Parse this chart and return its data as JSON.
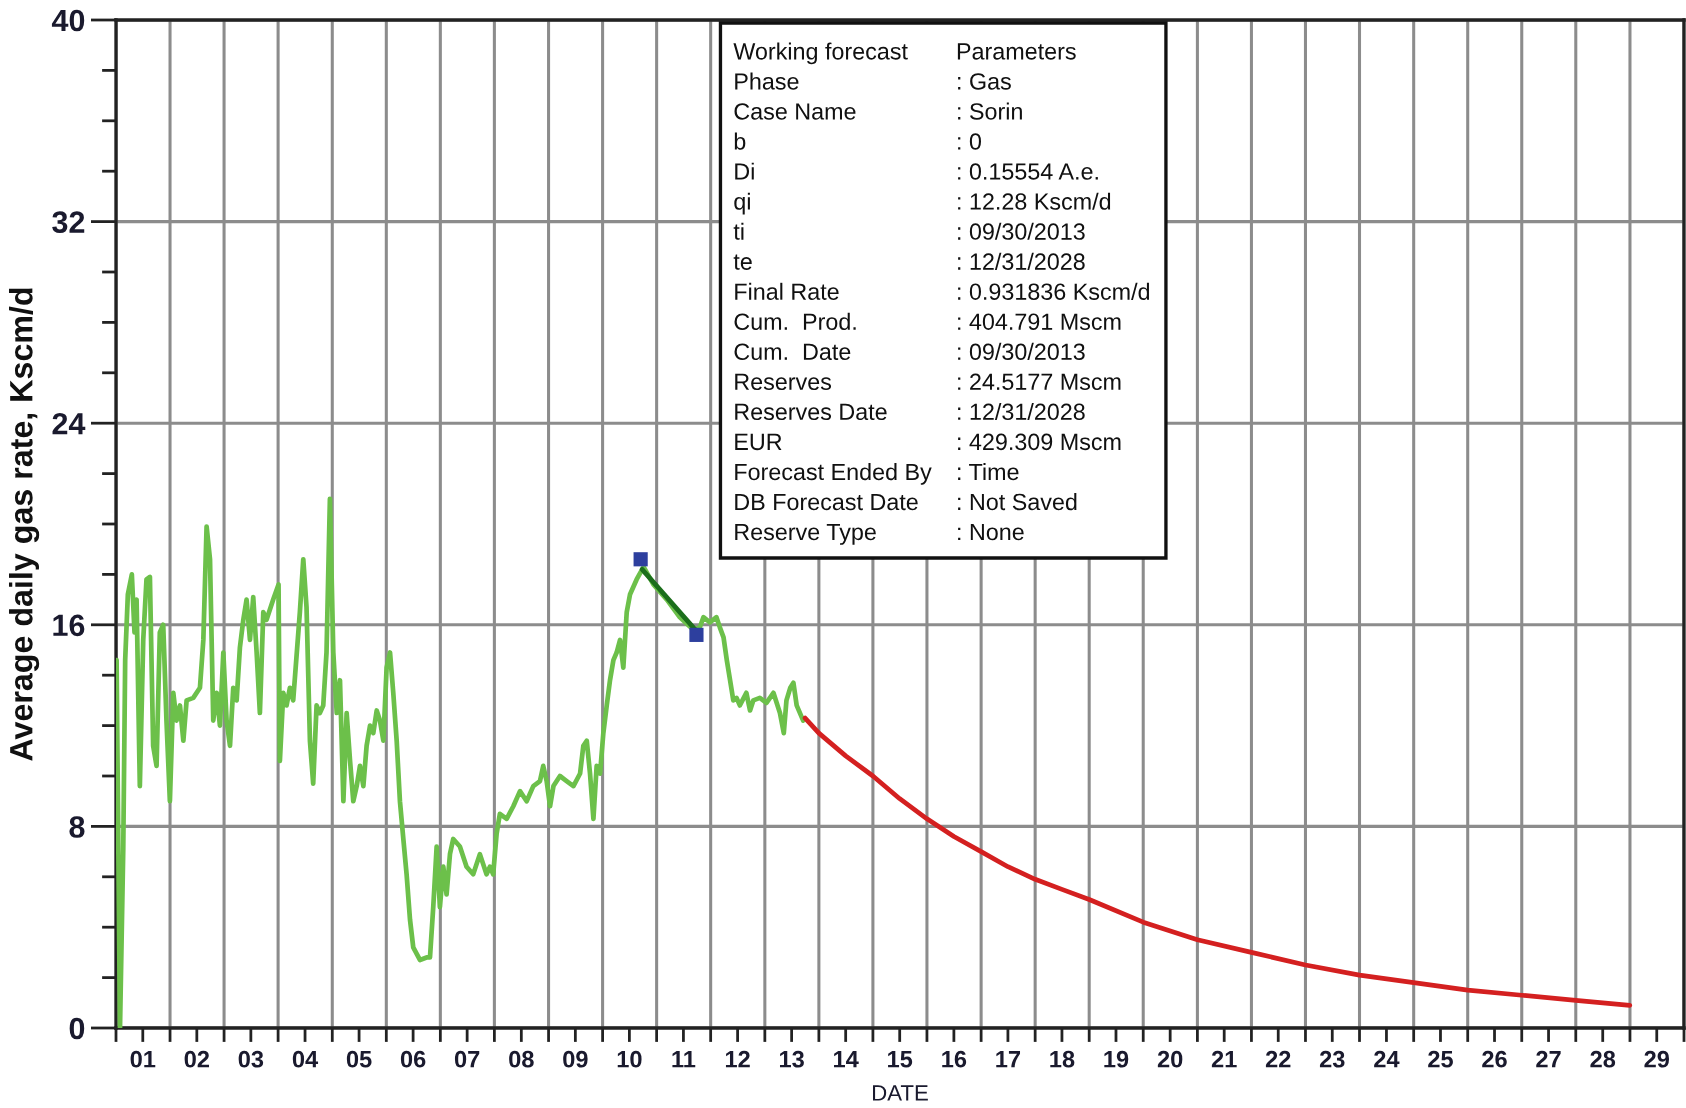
{
  "chart_data": {
    "type": "line",
    "xlabel": "DATE",
    "ylabel": "Average daily gas rate, Kscm/d",
    "annotations": [
      "Working forecast",
      "Parameters",
      "Phase",
      ": Gas",
      "Case Name",
      ": Sorin",
      "b",
      ": 0",
      "Di",
      ": 0.15554 A.e.",
      "qi",
      ": 12.28 Kscm/d",
      "ti",
      ": 09/30/2013",
      "te",
      ": 12/31/2028",
      "Final Rate",
      ": 0.931836 Kscm/d",
      "Cum.  Prod.",
      ": 404.791 Mscm",
      "Cum.  Date",
      ": 09/30/2013",
      "Reserves",
      ": 24.5177 Mscm",
      "Reserves Date",
      ": 12/31/2028",
      "EUR",
      ": 429.309 Mscm",
      "Forecast Ended By",
      ": Time",
      "DB Forecast Date",
      ": Not Saved",
      "Reserve Type",
      ": None"
    ],
    "xlim": [
      "2001-01-01",
      "2030-01-01"
    ],
    "xticks": [
      {
        "value": "2001-01-01",
        "label": null
      },
      {
        "value": "2001-07-01",
        "label": "01"
      },
      {
        "value": "2002-01-01",
        "label": null
      },
      {
        "value": "2002-07-01",
        "label": "02"
      },
      {
        "value": "2003-01-01",
        "label": null
      },
      {
        "value": "2003-07-01",
        "label": "03"
      },
      {
        "value": "2004-01-01",
        "label": null
      },
      {
        "value": "2004-07-01",
        "label": "04"
      },
      {
        "value": "2005-01-01",
        "label": null
      },
      {
        "value": "2005-07-01",
        "label": "05"
      },
      {
        "value": "2006-01-01",
        "label": null
      },
      {
        "value": "2006-07-01",
        "label": "06"
      },
      {
        "value": "2007-01-01",
        "label": null
      },
      {
        "value": "2007-07-01",
        "label": "07"
      },
      {
        "value": "2008-01-01",
        "label": null
      },
      {
        "value": "2008-07-01",
        "label": "08"
      },
      {
        "value": "2009-01-01",
        "label": null
      },
      {
        "value": "2009-07-01",
        "label": "09"
      },
      {
        "value": "2010-01-01",
        "label": null
      },
      {
        "value": "2010-07-01",
        "label": "10"
      },
      {
        "value": "2011-01-01",
        "label": null
      },
      {
        "value": "2011-07-01",
        "label": "11"
      },
      {
        "value": "2012-01-01",
        "label": null
      },
      {
        "value": "2012-07-01",
        "label": "12"
      },
      {
        "value": "2013-01-01",
        "label": null
      },
      {
        "value": "2013-07-01",
        "label": "13"
      },
      {
        "value": "2014-01-01",
        "label": null
      },
      {
        "value": "2014-07-01",
        "label": "14"
      },
      {
        "value": "2015-01-01",
        "label": null
      },
      {
        "value": "2015-07-01",
        "label": "15"
      },
      {
        "value": "2016-01-01",
        "label": null
      },
      {
        "value": "2016-07-01",
        "label": "16"
      },
      {
        "value": "2017-01-01",
        "label": null
      },
      {
        "value": "2017-07-01",
        "label": "17"
      },
      {
        "value": "2018-01-01",
        "label": null
      },
      {
        "value": "2018-07-01",
        "label": "18"
      },
      {
        "value": "2019-01-01",
        "label": null
      },
      {
        "value": "2019-07-01",
        "label": "19"
      },
      {
        "value": "2020-01-01",
        "label": null
      },
      {
        "value": "2020-07-01",
        "label": "20"
      },
      {
        "value": "2021-01-01",
        "label": null
      },
      {
        "value": "2021-07-01",
        "label": "21"
      },
      {
        "value": "2022-01-01",
        "label": null
      },
      {
        "value": "2022-07-01",
        "label": "22"
      },
      {
        "value": "2023-01-01",
        "label": null
      },
      {
        "value": "2023-07-01",
        "label": "23"
      },
      {
        "value": "2024-01-01",
        "label": null
      },
      {
        "value": "2024-07-01",
        "label": "24"
      },
      {
        "value": "2025-01-01",
        "label": null
      },
      {
        "value": "2025-07-01",
        "label": "25"
      },
      {
        "value": "2026-01-01",
        "label": null
      },
      {
        "value": "2026-07-01",
        "label": "26"
      },
      {
        "value": "2027-01-01",
        "label": null
      },
      {
        "value": "2027-07-01",
        "label": "27"
      },
      {
        "value": "2028-01-01",
        "label": null
      },
      {
        "value": "2028-07-01",
        "label": "28"
      },
      {
        "value": "2029-01-01",
        "label": null
      },
      {
        "value": "2029-07-01",
        "label": "29"
      },
      {
        "value": "2030-01-01",
        "label": null
      }
    ],
    "ylim": [
      0,
      40
    ],
    "yticks": [
      0,
      {
        "value": 2,
        "label": null
      },
      {
        "value": 4,
        "label": null
      },
      {
        "value": 6,
        "label": null
      },
      8,
      {
        "value": 10,
        "label": null
      },
      {
        "value": 12,
        "label": null
      },
      {
        "value": 14,
        "label": null
      },
      16,
      {
        "value": 18,
        "label": null
      },
      {
        "value": 20,
        "label": null
      },
      {
        "value": 22,
        "label": null
      },
      24,
      {
        "value": 26,
        "label": null
      },
      {
        "value": 28,
        "label": null
      },
      {
        "value": 30,
        "label": null
      },
      32,
      {
        "value": 34,
        "label": null
      },
      {
        "value": 36,
        "label": null
      },
      {
        "value": 38,
        "label": null
      },
      40
    ],
    "grid": true,
    "series": [
      {
        "type": "line",
        "color": "#6cc04a",
        "x": [
          "2001-01-05",
          "2001-01-28",
          "2001-02-19",
          "2001-03-04",
          "2001-03-22",
          "2001-04-18",
          "2001-05-06",
          "2001-05-20",
          "2001-06-11",
          "2001-07-04",
          "2001-07-26",
          "2001-08-18",
          "2001-09-09",
          "2001-10-02",
          "2001-10-24",
          "2001-11-16",
          "2001-12-08",
          "2001-12-31",
          "2002-01-23",
          "2002-02-14",
          "2002-03-09",
          "2002-04-01",
          "2002-04-23",
          "2002-06-07",
          "2002-07-22",
          "2002-08-14",
          "2002-09-05",
          "2002-09-28",
          "2002-10-20",
          "2002-11-12",
          "2002-12-04",
          "2002-12-27",
          "2003-01-18",
          "2003-02-10",
          "2003-03-04",
          "2003-03-27",
          "2003-04-18",
          "2003-05-11",
          "2003-06-02",
          "2003-06-25",
          "2003-07-17",
          "2003-08-09",
          "2003-08-31",
          "2003-09-23",
          "2003-10-15",
          "2003-11-29",
          "2004-01-04",
          "2004-01-13",
          "2004-02-05",
          "2004-02-27",
          "2004-03-21",
          "2004-04-12",
          "2004-05-27",
          "2004-06-19",
          "2004-07-11",
          "2004-08-03",
          "2004-08-25",
          "2004-09-17",
          "2004-10-09",
          "2004-11-01",
          "2004-11-23",
          "2004-12-16",
          "2005-01-08",
          "2005-01-31",
          "2005-02-22",
          "2005-03-17",
          "2005-04-08",
          "2005-05-01",
          "2005-05-23",
          "2005-06-15",
          "2005-07-07",
          "2005-07-30",
          "2005-08-21",
          "2005-09-13",
          "2005-10-05",
          "2005-10-28",
          "2005-11-19",
          "2005-12-12",
          "2006-01-03",
          "2006-01-26",
          "2006-02-17",
          "2006-03-12",
          "2006-04-03",
          "2006-04-26",
          "2006-05-18",
          "2006-06-10",
          "2006-07-02",
          "2006-08-16",
          "2006-09-30",
          "2006-10-23",
          "2006-11-14",
          "2006-12-07",
          "2006-12-29",
          "2007-01-21",
          "2007-02-12",
          "2007-03-07",
          "2007-03-29",
          "2007-05-13",
          "2007-06-27",
          "2007-08-11",
          "2007-09-25",
          "2007-11-09",
          "2007-12-02",
          "2007-12-24",
          "2008-01-16",
          "2008-02-07",
          "2008-03-24",
          "2008-05-08",
          "2008-06-22",
          "2008-08-06",
          "2008-09-20",
          "2008-11-04",
          "2008-11-26",
          "2008-12-19",
          "2009-01-11",
          "2009-02-03",
          "2009-03-19",
          "2009-05-03",
          "2009-06-18",
          "2009-08-02",
          "2009-08-24",
          "2009-09-16",
          "2009-10-08",
          "2009-10-31",
          "2009-11-22",
          "2009-12-15",
          "2010-01-06",
          "2010-01-29",
          "2010-02-20",
          "2010-03-15",
          "2010-04-06",
          "2010-04-29",
          "2010-05-21",
          "2010-06-13",
          "2010-07-05",
          "2010-08-19",
          "2010-10-05",
          "2010-12-10",
          "2011-03-11",
          "2011-06-07",
          "2011-09-06",
          "2011-10-20",
          "2011-11-13",
          "2011-12-27",
          "2012-02-09",
          "2012-03-03",
          "2012-03-28",
          "2012-04-19",
          "2012-05-11",
          "2012-06-02",
          "2012-06-24",
          "2012-07-16",
          "2012-08-29",
          "2012-09-23",
          "2012-10-15",
          "2012-11-28",
          "2013-01-12",
          "2013-02-28",
          "2013-04-13",
          "2013-05-09",
          "2013-05-27",
          "2013-06-22",
          "2013-07-13",
          "2013-08-04",
          "2013-09-17"
        ],
        "values": [
          14.6,
          0,
          7.1,
          14.6,
          17.2,
          18.0,
          15.7,
          17.0,
          9.6,
          15.4,
          17.8,
          17.9,
          11.2,
          10.4,
          15.7,
          16.0,
          12.2,
          9.0,
          13.3,
          12.2,
          12.8,
          11.4,
          13.0,
          13.1,
          13.5,
          15.4,
          19.9,
          18.6,
          12.2,
          13.3,
          12.0,
          14.9,
          12.2,
          11.2,
          13.5,
          13.0,
          15.1,
          16.2,
          17.0,
          15.4,
          17.1,
          14.9,
          12.5,
          16.5,
          16.2,
          17.0,
          17.6,
          10.6,
          13.3,
          12.8,
          13.5,
          13.0,
          16.5,
          18.6,
          16.7,
          11.4,
          9.7,
          12.8,
          12.5,
          12.8,
          14.9,
          21.0,
          14.9,
          12.5,
          13.8,
          9.0,
          12.5,
          10.6,
          9.0,
          9.6,
          10.4,
          9.6,
          11.2,
          12.0,
          11.7,
          12.6,
          12.2,
          11.4,
          14.3,
          14.9,
          13.3,
          11.4,
          9.0,
          7.5,
          6.1,
          4.3,
          3.2,
          2.7,
          2.8,
          2.8,
          4.8,
          7.2,
          4.8,
          6.4,
          5.3,
          6.9,
          7.5,
          7.2,
          6.4,
          6.1,
          6.9,
          6.1,
          6.4,
          6.1,
          7.7,
          8.5,
          8.3,
          8.8,
          9.4,
          9.0,
          9.6,
          9.8,
          10.4,
          9.8,
          8.8,
          9.6,
          10.0,
          9.8,
          9.6,
          10.1,
          11.2,
          11.4,
          10.1,
          8.3,
          10.4,
          10.1,
          11.7,
          12.8,
          13.8,
          14.6,
          14.9,
          15.4,
          14.3,
          16.5,
          17.2,
          17.8,
          18.3,
          17.6,
          17.0,
          16.3,
          15.8,
          15.9,
          16.3,
          16.1,
          16.3,
          15.9,
          15.5,
          14.6,
          13.8,
          13.0,
          13.1,
          12.8,
          13.3,
          12.6,
          13.0,
          13.1,
          12.9,
          13.3,
          12.5,
          11.7,
          13.0,
          13.5,
          13.7,
          12.8,
          12.2
        ]
      },
      {
        "type": "line",
        "color": "#1b6e1b",
        "x": [
          "2010-09-25",
          "2011-09-20"
        ],
        "values": [
          18.2,
          15.8
        ]
      },
      {
        "type": "line",
        "color": "#d42020",
        "x": [
          "2013-09-30",
          "2014-01-01",
          "2014-07-01",
          "2015-01-01",
          "2015-07-01",
          "2016-01-01",
          "2016-07-01",
          "2017-01-01",
          "2017-07-01",
          "2018-01-01",
          "2018-07-01",
          "2019-01-01",
          "2020-01-01",
          "2021-01-01",
          "2022-01-01",
          "2023-01-01",
          "2024-01-01",
          "2025-01-01",
          "2026-01-01",
          "2027-01-01",
          "2028-01-01",
          "2028-12-31"
        ],
        "values": [
          12.3,
          11.7,
          10.8,
          10.0,
          9.1,
          8.3,
          7.6,
          7.0,
          6.4,
          5.9,
          5.5,
          5.1,
          4.2,
          3.5,
          3.0,
          2.5,
          2.1,
          1.8,
          1.5,
          1.3,
          1.1,
          0.9
        ]
      },
      {
        "type": "scatter",
        "color": "#2d3f9e",
        "marker": "square",
        "x": [
          "2010-09-15",
          "2011-09-27"
        ],
        "values": [
          18.6,
          15.6
        ]
      }
    ]
  }
}
